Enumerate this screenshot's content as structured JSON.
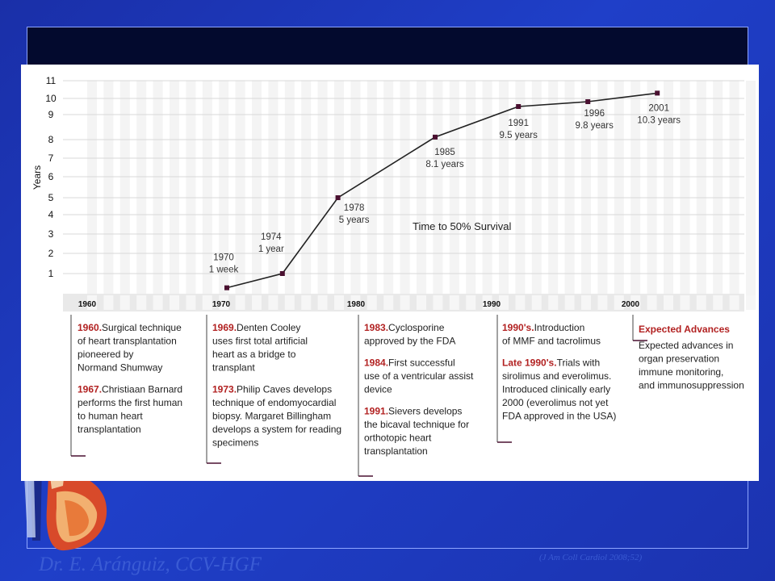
{
  "slide": {
    "author": "Dr. E. Aránguiz, CCV-HGF",
    "citation": "(J Am Coll Cardiol 2008;52)"
  },
  "colors": {
    "background": "#1f3fc8",
    "topbar": "#030a2e",
    "line": "#222222",
    "marker": "#4a1030",
    "timeline_bar": "#e9e9e9",
    "accent_red": "#b22222"
  },
  "chart_data": {
    "type": "line",
    "title": "",
    "xlabel": "",
    "ylabel": "Years",
    "legend_text": "Time to 50% Survival",
    "yticks": [
      "1",
      "2",
      "3",
      "4",
      "5",
      "6",
      "7",
      "8",
      "9",
      "10",
      "11"
    ],
    "ylim": [
      0,
      11
    ],
    "xlim": [
      1960,
      2008
    ],
    "grid": true,
    "x": [
      1970,
      1974,
      1978,
      1985,
      1991,
      1996,
      2001
    ],
    "values": [
      0.02,
      1,
      5,
      8.1,
      9.5,
      9.8,
      10.3
    ],
    "annotations": [
      {
        "year": "1970",
        "label": "1 week"
      },
      {
        "year": "1974",
        "label": "1 year"
      },
      {
        "year": "1978",
        "label": "5 years"
      },
      {
        "year": "1985",
        "label": "8.1 years"
      },
      {
        "year": "1991",
        "label": "9.5 years"
      },
      {
        "year": "1996",
        "label": "9.8 years"
      },
      {
        "year": "2001",
        "label": "10.3 years"
      }
    ],
    "timeline_years": [
      "1960",
      "1970",
      "1980",
      "1990",
      "2000"
    ]
  },
  "timeline_events": {
    "e1960": [
      {
        "year": "1960.",
        "lines": [
          "Surgical technique",
          "of heart transplantation",
          "pioneered by",
          "Normand Shumway"
        ]
      },
      {
        "year": "1967.",
        "lines": [
          "Christiaan Barnard",
          "performs the first human",
          "to human heart",
          "transplantation"
        ]
      }
    ],
    "e1970": [
      {
        "year": "1969.",
        "lines": [
          "Denten Cooley",
          "uses first total artificial",
          "heart as a bridge to",
          "transplant"
        ]
      },
      {
        "year": "1973.",
        "lines": [
          "Philip Caves develops",
          "technique of endomyocardial",
          "biopsy. Margaret Billingham",
          "develops a system for reading",
          "specimens"
        ]
      }
    ],
    "e1980": [
      {
        "year": "1983.",
        "lines": [
          "Cyclosporine",
          "approved by the FDA"
        ]
      },
      {
        "year": "1984.",
        "lines": [
          "First successful",
          "use of a ventricular assist",
          "device"
        ]
      },
      {
        "year": "1991.",
        "lines": [
          "Sievers develops",
          "the bicaval technique for",
          "orthotopic heart",
          "transplantation"
        ]
      }
    ],
    "e1990": [
      {
        "year": "1990's.",
        "lines": [
          "Introduction",
          "of MMF and tacrolimus"
        ]
      },
      {
        "year": "Late 1990's.",
        "lines": [
          "Trials with",
          "sirolimus and everolimus.",
          "Introduced clinically early",
          "2000 (everolimus not yet",
          "FDA approved  in the USA)"
        ]
      }
    ],
    "e2000": [
      {
        "year": "Expected Advances",
        "lines": [
          "Expected advances in",
          "organ preservation",
          "immune monitoring,",
          "and immunosuppression"
        ]
      }
    ]
  }
}
